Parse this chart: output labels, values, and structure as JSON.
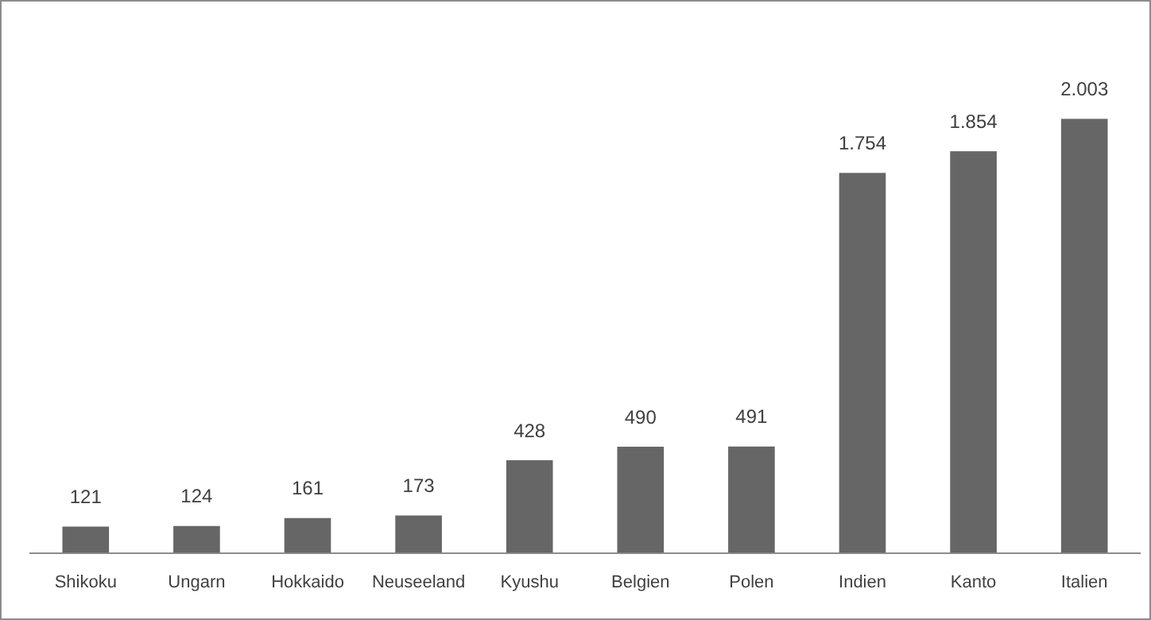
{
  "chart_data": {
    "type": "bar",
    "categories": [
      "Shikoku",
      "Ungarn",
      "Hokkaido",
      "Neuseeland",
      "Kyushu",
      "Belgien",
      "Polen",
      "Indien",
      "Kanto",
      "Italien"
    ],
    "values": [
      121,
      124,
      161,
      173,
      428,
      490,
      491,
      1754,
      1854,
      2003
    ],
    "value_labels": [
      "121",
      "124",
      "161",
      "173",
      "428",
      "490",
      "491",
      "1.754",
      "1.854",
      "2.003"
    ],
    "color": "#666666",
    "grid": false,
    "legend": false
  }
}
